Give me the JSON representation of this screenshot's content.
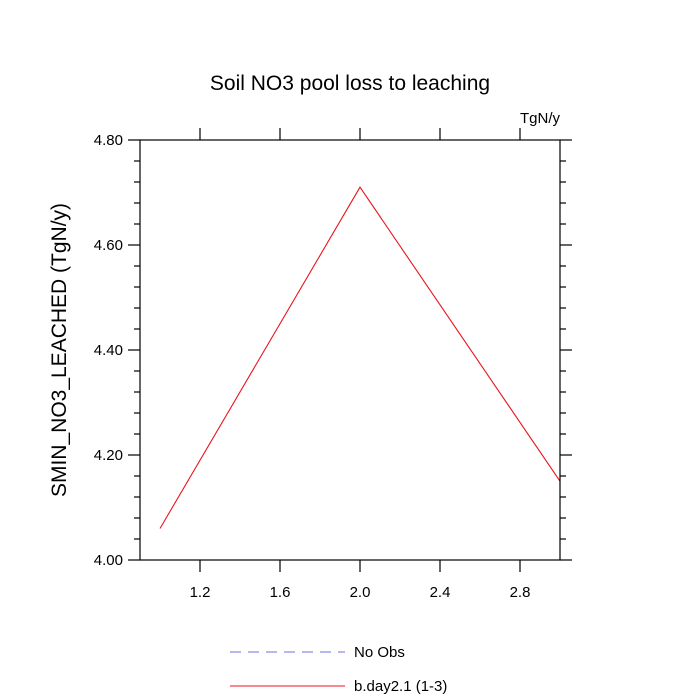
{
  "chart_data": {
    "type": "line",
    "title": "Soil NO3 pool loss to leaching",
    "units_label": "TgN/y",
    "ylabel": "SMIN_NO3_LEACHED  (TgN/y)",
    "xlabel": "",
    "xlim": [
      0.9,
      3.0
    ],
    "ylim": [
      4.0,
      4.8
    ],
    "x_ticks": [
      1.2,
      1.6,
      2.0,
      2.4,
      2.8
    ],
    "x_tick_labels": [
      "1.2",
      "1.6",
      "2.0",
      "2.4",
      "2.8"
    ],
    "y_ticks": [
      4.0,
      4.2,
      4.4,
      4.6,
      4.8
    ],
    "y_tick_labels": [
      "4.00",
      "4.20",
      "4.40",
      "4.60",
      "4.80"
    ],
    "grid": false,
    "legend_position": "bottom-center",
    "series": [
      {
        "name": "b.day2.1 (1-3)",
        "color": "#e8141c",
        "dash": false,
        "x": [
          1.0,
          2.0,
          3.0
        ],
        "values": [
          4.06,
          4.71,
          4.15
        ]
      }
    ],
    "legend": [
      {
        "label": "No Obs",
        "color": "#6f6fe6",
        "dash": true
      },
      {
        "label": "b.day2.1 (1-3)",
        "color": "#e8141c",
        "dash": false
      }
    ]
  }
}
